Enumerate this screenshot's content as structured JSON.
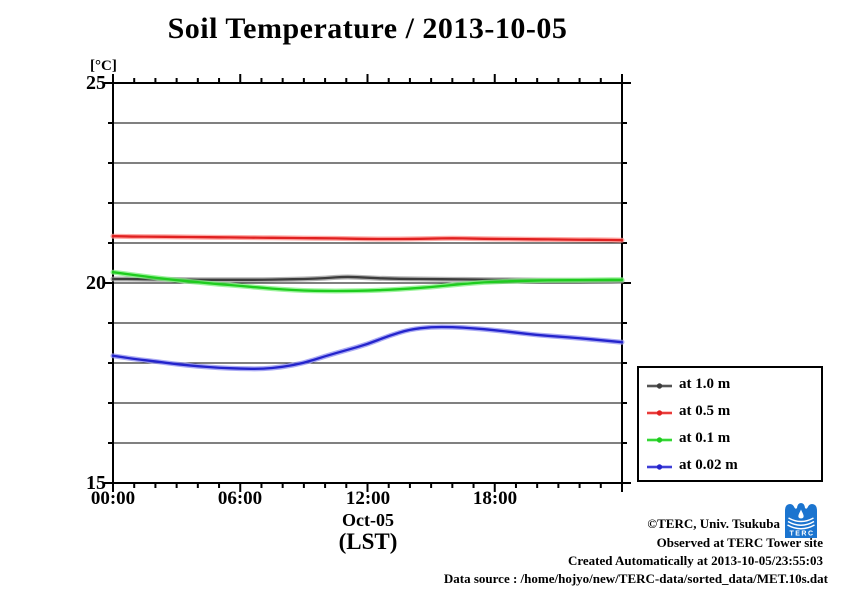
{
  "chart_data": {
    "type": "line",
    "title": "Soil Temperature / 2013-10-05",
    "unit_label": "[°C]",
    "xlabel_date": "Oct-05",
    "xlabel_unit": "(LST)",
    "x_range": [
      0,
      24
    ],
    "ylim": [
      15,
      25
    ],
    "grid": true,
    "legend_position": "outside-right-bottom",
    "yticks": [
      {
        "value": 15,
        "label": "15"
      },
      {
        "value": 20,
        "label": "20"
      },
      {
        "value": 25,
        "label": "25"
      }
    ],
    "xticks": [
      {
        "hour": 0,
        "label": "00:00"
      },
      {
        "hour": 6,
        "label": "06:00"
      },
      {
        "hour": 12,
        "label": "12:00"
      },
      {
        "hour": 18,
        "label": "18:00"
      }
    ],
    "x_hours": [
      0,
      1,
      2,
      3,
      4,
      5,
      6,
      7,
      8,
      9,
      10,
      11,
      12,
      13,
      14,
      15,
      16,
      17,
      18,
      19,
      20,
      21,
      22,
      23,
      24
    ],
    "series": [
      {
        "name": "at 1.0 m",
        "color": "#3c3c3c",
        "halo": "#9a9a9a",
        "values": [
          20.1,
          20.1,
          20.09,
          20.09,
          20.08,
          20.08,
          20.08,
          20.08,
          20.09,
          20.1,
          20.12,
          20.16,
          20.13,
          20.11,
          20.1,
          20.1,
          20.09,
          20.09,
          20.08,
          20.08,
          20.07,
          20.07,
          20.06,
          20.06,
          20.05
        ]
      },
      {
        "name": "at 0.5 m",
        "color": "#e02020",
        "halo": "#ff8d88",
        "values": [
          21.17,
          21.16,
          21.16,
          21.15,
          21.15,
          21.14,
          21.14,
          21.13,
          21.13,
          21.12,
          21.12,
          21.11,
          21.1,
          21.1,
          21.1,
          21.11,
          21.12,
          21.11,
          21.1,
          21.1,
          21.09,
          21.09,
          21.08,
          21.08,
          21.07
        ]
      },
      {
        "name": "at 0.1 m",
        "color": "#1ecc1e",
        "halo": "#7ef07e",
        "values": [
          20.27,
          20.2,
          20.13,
          20.07,
          20.02,
          19.97,
          19.93,
          19.88,
          19.84,
          19.81,
          19.8,
          19.8,
          19.81,
          19.83,
          19.86,
          19.9,
          19.95,
          20.0,
          20.03,
          20.05,
          20.06,
          20.07,
          20.07,
          20.08,
          20.08
        ]
      },
      {
        "name": "at 0.02 m",
        "color": "#2424cc",
        "halo": "#8d8ef0",
        "values": [
          18.18,
          18.1,
          18.04,
          17.97,
          17.92,
          17.88,
          17.86,
          17.85,
          17.9,
          18.0,
          18.17,
          18.32,
          18.47,
          18.68,
          18.84,
          18.9,
          18.9,
          18.87,
          18.82,
          18.76,
          18.7,
          18.66,
          18.62,
          18.57,
          18.52
        ]
      }
    ]
  },
  "annotations": {
    "copyright": "©TERC, Univ. Tsukuba",
    "observed": "Observed at TERC Tower site",
    "created": "Created Automatically at 2013-10-05/23:55:03",
    "source": "Data source : /home/hojyo/new/TERC-data/sorted_data/MET.10s.dat"
  },
  "logo": {
    "text": "TERC",
    "color": "#1b74cf"
  }
}
